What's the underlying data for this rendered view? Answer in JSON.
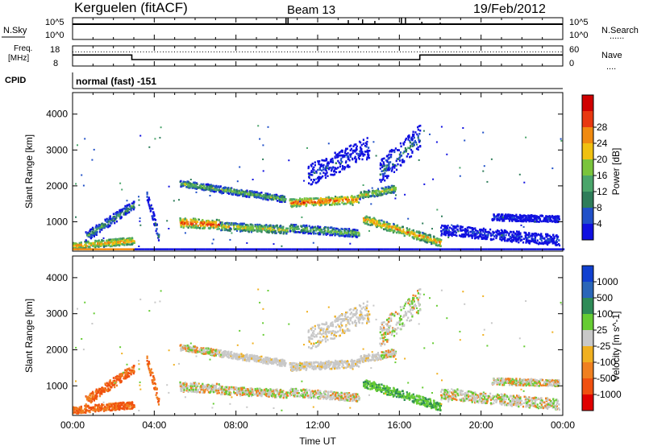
{
  "header": {
    "station": "Kerguelen (fitACF)",
    "beam": "Beam 13",
    "date": "19/Feb/2012"
  },
  "strip_labels": {
    "nsky": "N.Sky",
    "nsearch": "N.Search",
    "freq": "Freq.",
    "freq_unit": "[MHz]",
    "nave": "Nave",
    "cpid": "CPID",
    "cpid_value": "normal (fast) -151",
    "dotted_key": "......",
    "dotted_key_short": "...."
  },
  "colors": {
    "power": [
      "#1010e0",
      "#2050c8",
      "#2e7d5a",
      "#4aa56a",
      "#7ac43c",
      "#f0c010",
      "#f08a10",
      "#e83810",
      "#d00000"
    ],
    "velocity": [
      "#1040d0",
      "#2a66b8",
      "#2e8b57",
      "#66cc33",
      "#c8c8c8",
      "#f0b020",
      "#f08020",
      "#f05010",
      "#e00000"
    ]
  },
  "chart_data": [
    {
      "type": "line",
      "title": "N.Sky / N.Search",
      "ylabel_left": "N.Sky",
      "ylabel_right": "N.Search",
      "left_ticks": [
        "10^5",
        "10^0"
      ],
      "right_ticks": [
        "10^5",
        "10^0"
      ],
      "xlim_hours": [
        0,
        24
      ]
    },
    {
      "type": "line",
      "ylabel_left": "Freq. [MHz]",
      "ylabel_right": "Nave",
      "left_ticks": [
        18,
        8
      ],
      "right_ticks": [
        60,
        0
      ],
      "freq_series": {
        "x_hours": [
          0,
          2.9,
          2.9,
          17.0,
          17.0,
          24
        ],
        "y_mhz": [
          13.5,
          13.5,
          11.2,
          11.2,
          13.5,
          13.5
        ]
      },
      "nave_level": 42
    },
    {
      "type": "heatmap",
      "quantity": "Power",
      "ylabel": "Slant Range [km]",
      "colorbar_label": "Power [dB]",
      "colorbar_ticks": [
        4,
        8,
        12,
        16,
        20,
        24,
        28
      ],
      "ylim": [
        180,
        4600
      ],
      "y_ticks": [
        1000,
        2000,
        3000,
        4000
      ],
      "xlim_hours": [
        0,
        24
      ]
    },
    {
      "type": "heatmap",
      "quantity": "Velocity",
      "ylabel": "Slant Range [km]",
      "colorbar_label": "Velocity [m s^-1]",
      "colorbar_ticks": [
        "1000",
        "500",
        "100",
        "25",
        "-25",
        "-100",
        "-500",
        "-1000"
      ],
      "ylim": [
        180,
        4600
      ],
      "y_ticks": [
        1000,
        2000,
        3000,
        4000
      ],
      "xlim_hours": [
        0,
        24
      ]
    }
  ],
  "x_axis": {
    "label": "Time UT",
    "ticks": [
      "00:00",
      "04:00",
      "08:00",
      "12:00",
      "16:00",
      "20:00",
      "00:00"
    ]
  }
}
